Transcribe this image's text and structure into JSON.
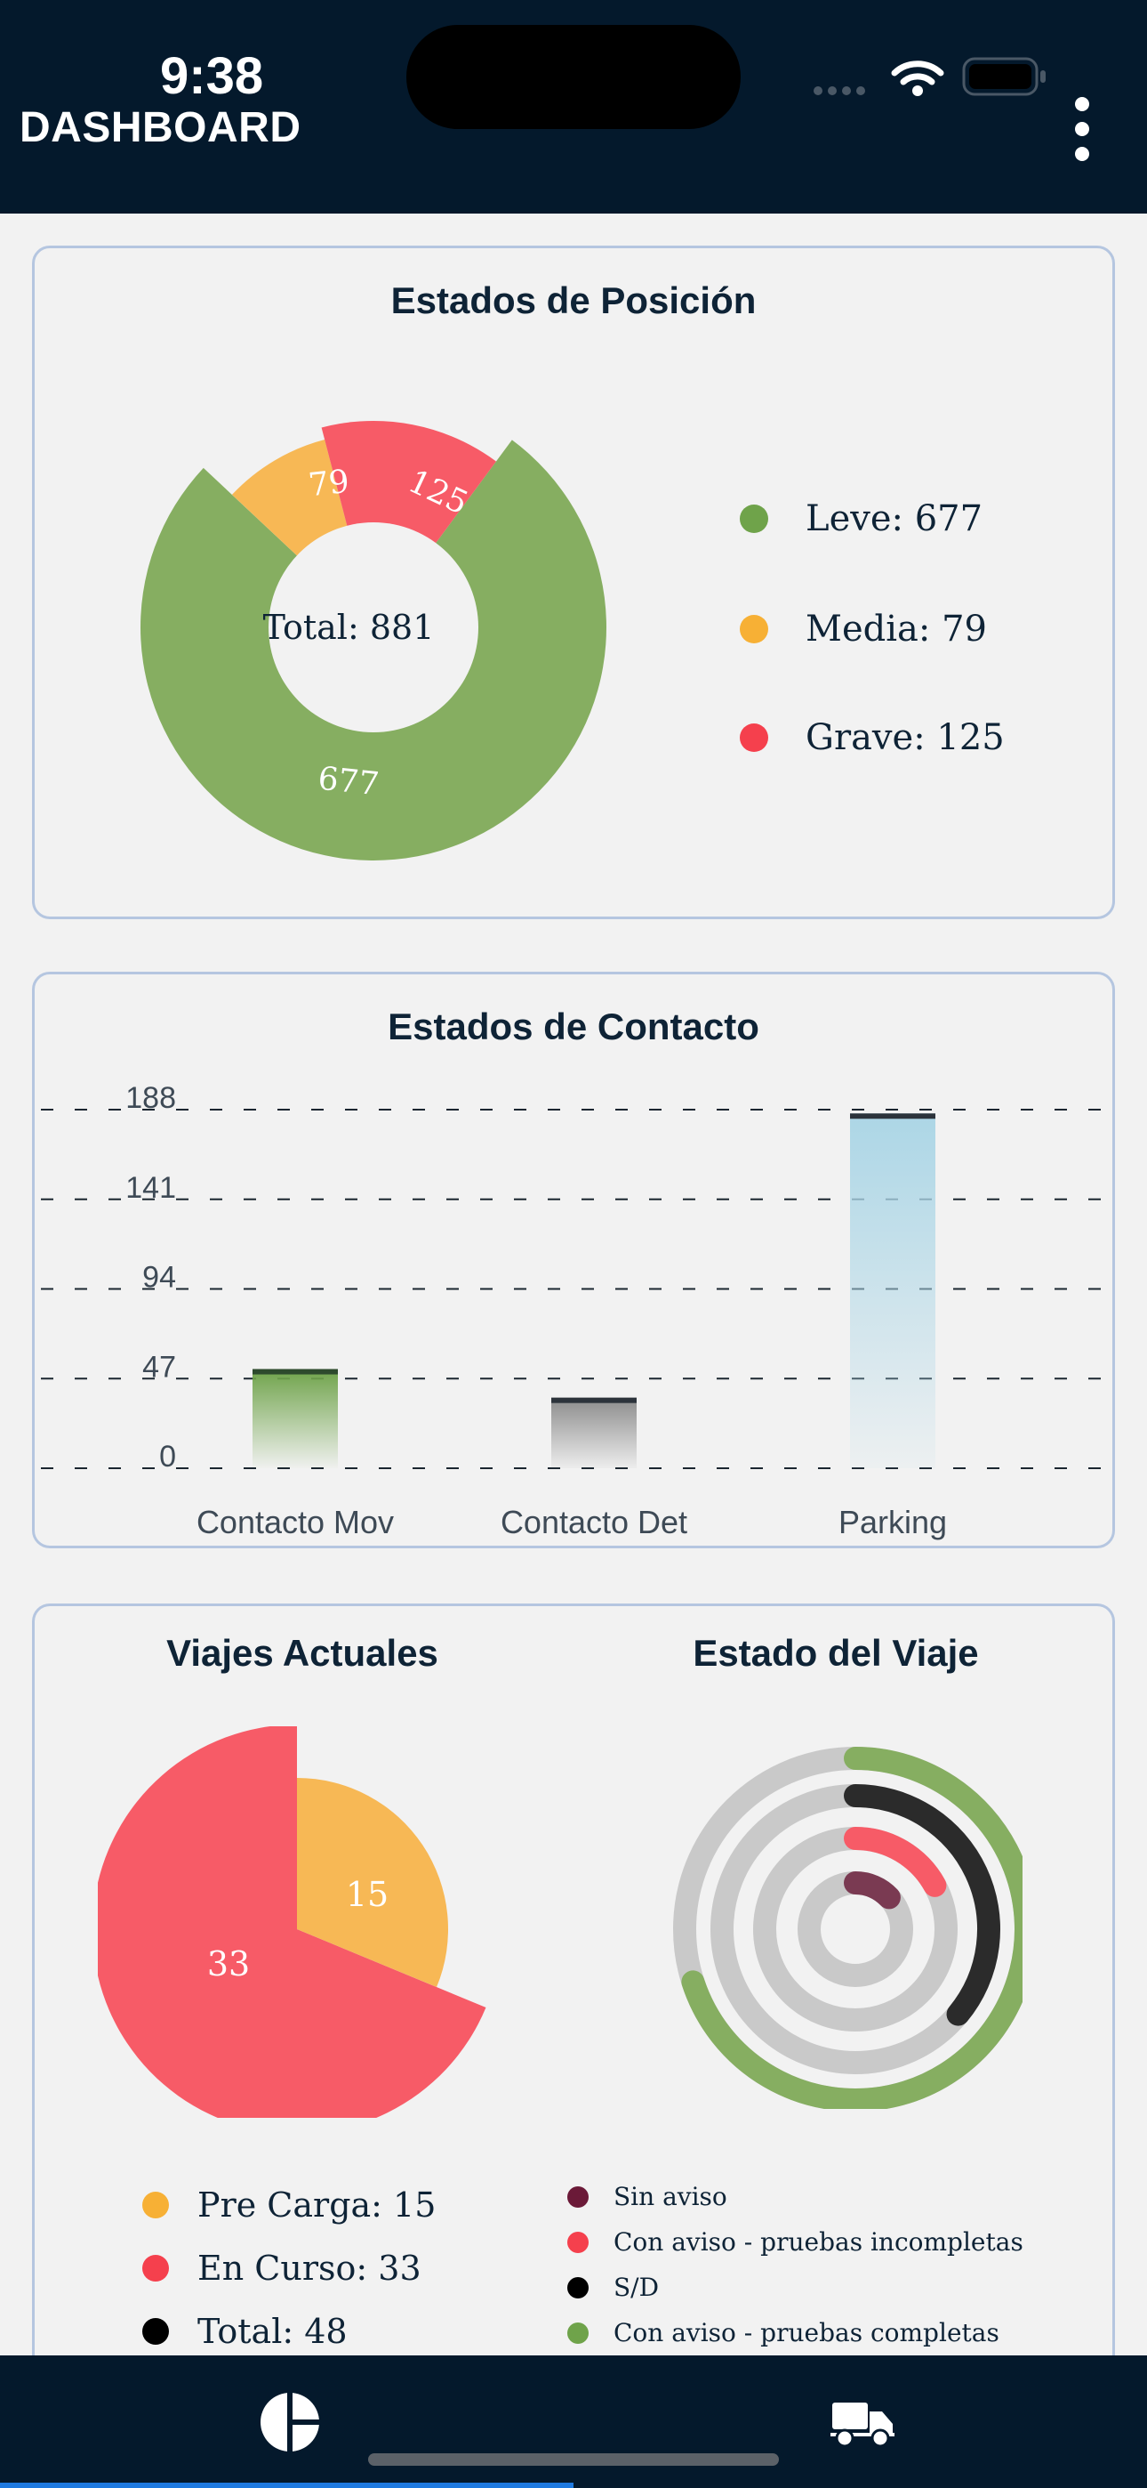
{
  "status_bar": {
    "time": "9:38"
  },
  "header": {
    "title": "DASHBOARD",
    "menu_icon": "more-vertical-icon"
  },
  "colors": {
    "header_bg": "#04192c",
    "leve": "#86ae61",
    "media": "#f7b855",
    "grave": "#f75b67",
    "contacto_mov": "#6fa34a",
    "contacto_det": "#8c8c8c",
    "parking": "#acd6e6",
    "tab_indicator": "#1f7ae0"
  },
  "estados_posicion": {
    "title": "Estados de Posición",
    "center_label": "Total: 881",
    "slice_labels": {
      "leve": "677",
      "media": "79",
      "grave": "125"
    },
    "legend": [
      {
        "label": "Leve: 677",
        "color": "#6fa34a"
      },
      {
        "label": "Media: 79",
        "color": "#f7b035"
      },
      {
        "label": "Grave: 125",
        "color": "#f5404d"
      }
    ]
  },
  "estados_contacto": {
    "title": "Estados de Contacto"
  },
  "viajes_actuales": {
    "title": "Viajes Actuales",
    "slice_labels": {
      "pre_carga": "15",
      "en_curso": "33"
    },
    "legend": [
      {
        "label": "Pre Carga: 15",
        "color": "#f7b035"
      },
      {
        "label": "En Curso: 33",
        "color": "#f5404d"
      },
      {
        "label": "Total: 48",
        "color": "#000000"
      }
    ]
  },
  "estado_viaje": {
    "title": "Estado del Viaje",
    "legend": [
      {
        "label": "Sin aviso",
        "color": "#6b1a38"
      },
      {
        "label": "Con aviso - pruebas incompletas",
        "color": "#f5404d"
      },
      {
        "label": "S/D",
        "color": "#000000"
      },
      {
        "label": "Con aviso - pruebas completas",
        "color": "#6fa34a"
      }
    ]
  },
  "tab_bar": {
    "tabs": [
      {
        "icon": "pie-chart-icon",
        "active": true
      },
      {
        "icon": "truck-icon",
        "active": false
      }
    ]
  },
  "chart_data": [
    {
      "type": "pie",
      "title": "Estados de Posición",
      "categories": [
        "Leve",
        "Media",
        "Grave"
      ],
      "values": [
        677,
        79,
        125
      ],
      "total": 881
    },
    {
      "type": "bar",
      "title": "Estados de Contacto",
      "categories": [
        "Contacto Mov",
        "Contacto Det",
        "Parking"
      ],
      "values": [
        52,
        37,
        186
      ],
      "yticks": [
        "0",
        "47",
        "94",
        "141",
        "188"
      ],
      "ylim": [
        0,
        188
      ],
      "grid": true
    },
    {
      "type": "pie",
      "title": "Viajes Actuales",
      "categories": [
        "Pre Carga",
        "En Curso"
      ],
      "values": [
        15,
        33
      ]
    },
    {
      "type": "radial-bar",
      "title": "Estado del Viaje",
      "categories": [
        "Sin aviso",
        "Con aviso - pruebas incompletas",
        "S/D",
        "Con aviso - pruebas completas"
      ],
      "values": [
        0.13,
        0.17,
        0.36,
        0.7
      ]
    }
  ]
}
